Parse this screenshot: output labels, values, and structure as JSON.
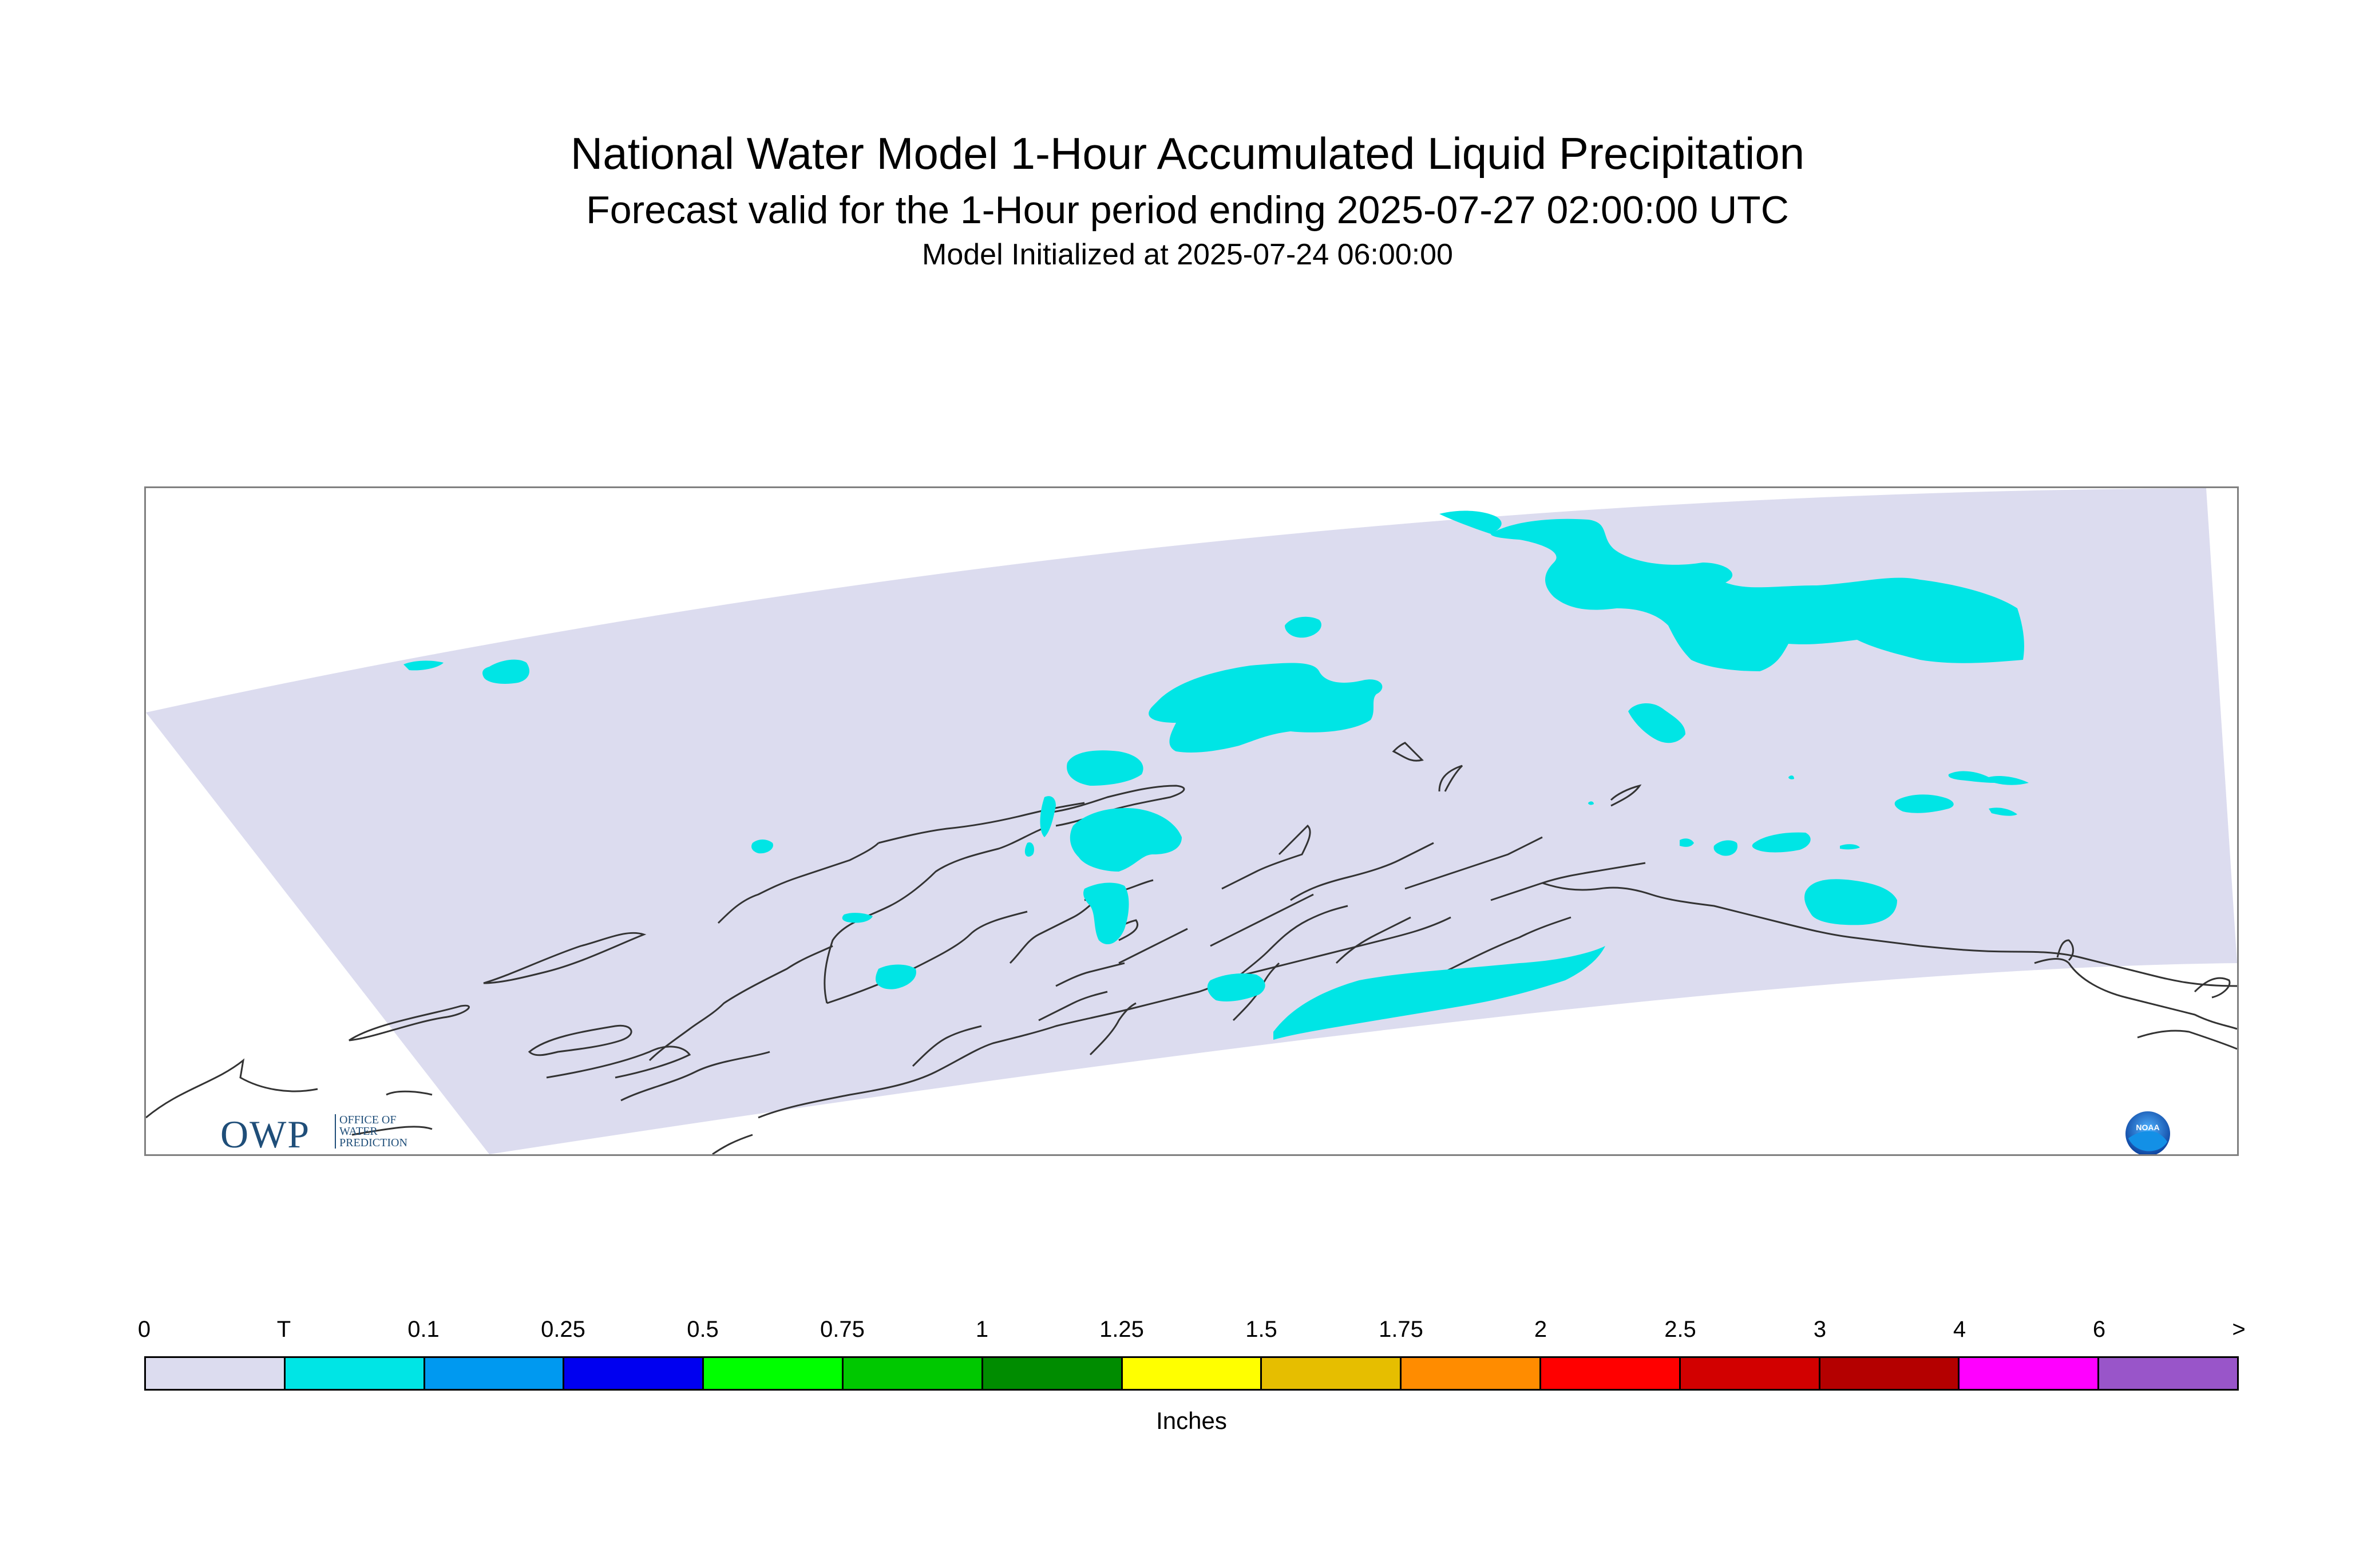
{
  "title": "National Water Model 1-Hour Accumulated Liquid Precipitation",
  "subtitle": "Forecast valid for the 1-Hour period ending 2025-07-27 02:00:00 UTC",
  "init_line": "Model Initialized at 2025-07-24 06:00:00",
  "map": {
    "domain_color": "#dcdcef",
    "precip_color": "#00e5e5",
    "coastline_color": "#333333"
  },
  "logos": {
    "owp_letters": "OWP",
    "owp_text": [
      "OFFICE OF",
      "WATER",
      "PREDICTION"
    ],
    "noaa_text": "NOAA"
  },
  "legend": {
    "units": "Inches",
    "tick_labels": [
      "0",
      "T",
      "0.1",
      "0.25",
      "0.5",
      "0.75",
      "1",
      "1.25",
      "1.5",
      "1.75",
      "2",
      "2.5",
      "3",
      "4",
      "6",
      ">"
    ],
    "colors": [
      "#dcdcef",
      "#00e5e5",
      "#0099f0",
      "#0000f0",
      "#00ff00",
      "#00c800",
      "#008c00",
      "#ffff00",
      "#e6be00",
      "#ff8c00",
      "#ff0000",
      "#d20000",
      "#b40000",
      "#ff00ff",
      "#9955c9"
    ]
  }
}
